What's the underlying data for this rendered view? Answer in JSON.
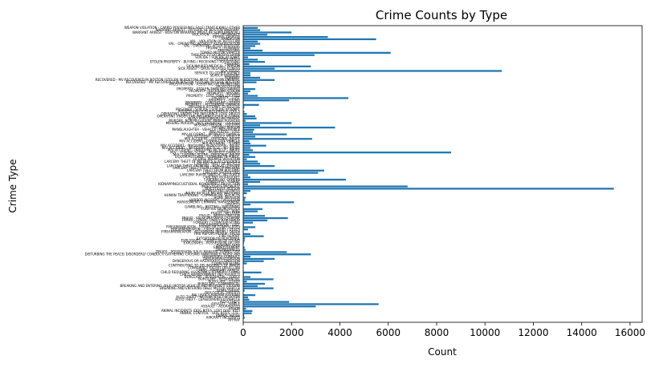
{
  "chart_data": {
    "type": "barh",
    "title": "Crime Counts by Type",
    "xlabel": "Count",
    "ylabel": "Crime Type",
    "color": "#1f77b4",
    "xlim": [
      0,
      16500
    ],
    "xticks": [
      0,
      2000,
      4000,
      6000,
      8000,
      10000,
      12000,
      14000,
      16000
    ],
    "categories": [
      "AFFRAY",
      "AIRCRAFT INCIDENTS",
      "ANIMAL ABUSE",
      "ANIMAL CONTROL - DOG BITES - ETC.",
      "ANIMAL INCIDENTS (DOG BITES, LOST DOG, ETC)",
      "ARSON",
      "ASSAULT - AGGRAVATED",
      "ASSAULT - SIMPLE",
      "AUTO THEFT",
      "AUTO THEFT - LEASED/RENTED VEHICLE",
      "AUTO THEFT - MOTORCYCLE / SCOOTER",
      "BALLISTICS EVIDENCE/FOUND",
      "BIOLOGICAL THREATS",
      "BOMB THREAT",
      "BREAKING AND ENTERING (B&E) MOTOR VEHICLE",
      "BREAKING AND ENTERING (B&E) MOTOR VEHICLE (NO PROPERTY STOLEN)",
      "BURGLARY - COMMERICAL",
      "BURGLARY - OTHER",
      "BURGLARY - RESIDENTIAL",
      "BURGLARY - RESIDENTIAL - FORCE",
      "CHILD ABANDONMENT (NO ASSAULT)",
      "CHILD REQUIRING ASSISTANCE (FOMERLY CHINS)",
      "CHINS - WARRANT ARREST",
      "CONSPIRACY EXCEPT DRUG LAW",
      "CONTRIBUTING TO DELINQUENCY OF MINOR",
      "COUNTERFEITING",
      "DANGEROUS OR HAZARDOUS CONDITION",
      "DEATH INVESTIGATION",
      "DISORDERLY CONDUCT",
      "DISTURBING THE PEACE/ DISORDERLY CONDUCT/ GATHERING CAUSING ANNOYANCE/ NOISY PAR",
      "DRUGS - POSSESSION/ SALE/ MANUFACTURING/ USE",
      "DRUNKENNESS",
      "EMBEZZLEMENT",
      "EVADING FARE",
      "EXPLOSIVES - POSSESSION OR USE",
      "EXPLOSIVES - TURNED IN OR FOUND",
      "EXTORTION OR BLACKMAIL",
      "FIRE REPORT",
      "FIRE REPORT/ALARM - FALSE",
      "FIREARM/WEAPON - ACCIDENTAL INJURY / DEATH",
      "FIREARM/WEAPON - CAUSE INJURY / DEATH",
      "FIREARM/WEAPON - FOUND OR CONFISCATED",
      "FIREARM/WEAPON - LOST",
      "FORGERY / COUNTERFEITING",
      "FRAUD - CREDIT CARD / ATM FRAUD",
      "FRAUD - FALSE PRETENSE / SCHEME",
      "FRAUD - IMPERSONATION",
      "FRAUD - WELFARE",
      "FRAUD - WIRE",
      "FUGITIVE FROM JUSTICE",
      "GAMBLING - BETTING / WAGERING",
      "GRAFFITI",
      "HARASSMENT/ CRIMINAL HARASSMENT",
      "HARBOR INCIDENT / VIOLATION",
      "HOME INVASION",
      "HUMAN TRAFFICKING - COMMERCIAL SEX ACTS",
      "INJURY BICYCLE NO M/V INVOLVED",
      "INTIMIDATING WITNESS",
      "INVESTIGATE PERSON",
      "INVESTIGATE PROPERTY",
      "KIDNAPPING/CUSTODIAL KIDNAPPING/ ABDUCTION",
      "LANDLORD - TENANT",
      "LARCENY ALL OTHERS",
      "LARCENY PICK-POCKET",
      "LARCENY PURSE SNATCH - NO FORCE",
      "LARCENY SHOPLIFTING",
      "LARCENY THEFT FROM BUILDING",
      "LARCENY THEFT FROM COIN-OP MACHINE",
      "LARCENY THEFT FROM MV - NON-ACCESSORY",
      "LARCENY THEFT OF BICYCLE",
      "LARCENY THEFT OF MV PARTS & ACCESSORIES",
      "LICENSE PREMISE VIOLATION",
      "LIQUOR/ALCOHOL - DRINKING IN PUBLIC",
      "M/V - LEAVING SCENE - PERSONAL INJURY",
      "M/V - LEAVING SCENE - PROPERTY DAMAGE",
      "M/V ACCIDENT - INVOLVING BICYCLE - INJURY",
      "M/V ACCIDENT - INVOLVING BICYCLE - NO INJURY",
      "M/V ACCIDENT - INVOLVING PEDESTRIAN - INJURY",
      "M/V ACCIDENT - OTHER",
      "M/V ACCIDENT - OTHER CITY VEHICLE",
      "M/V ACCIDENT - PERSONAL INJURY",
      "M/V ACCIDENT - POLICE VEHICLE",
      "M/V ACCIDENT - PROPERTY DAMAGE",
      "M/V PLATES - LOST",
      "MANSLAUGHTER - VEHICLE - NEGLIGENCE",
      "MISSING PERSON",
      "MISSING PERSON - LOCATED",
      "MISSING PERSON - NOT REPORTED - LOCATED",
      "MURDER, NON-NEGLIGENT MANSLAUGHTER",
      "NOISY PARTY/RADIO-NO ARREST",
      "OPERATING UNDER THE INFLUENCE (OUI) ALCOHOL",
      "OPERATING UNDER THE INFLUENCE (OUI) DRUGS",
      "POSSESSION OF BURGLARIOUS TOOLS",
      "PRISONER - SUICIDE / SUICIDE ATTEMPT",
      "PRISONER ATTEMPT TO RESCUE",
      "PROPERTY - ACCIDENTAL DAMAGE",
      "PROPERTY - CONCEALING LEASED",
      "PROPERTY - FOUND",
      "PROPERTY - LOST",
      "PROPERTY - LOST THEN LOCATED",
      "PROPERTY - MISSING",
      "PROPERTY - RECEIVING STOLEN",
      "PROPERTY - STOLEN THEN RECOVERED",
      "PROSTITUTION",
      "PROSTITUTION - ASSISTING OR PROMOTING",
      "RECOVERED - MV RECOVERED IN BOSTON (STOLEN OUTSIDE BOSTON)",
      "RECOVERED - MV RECOVERED IN BOSTON (STOLEN IN BOSTON) MUST BE SUPPLEMENTAL",
      "ROBBERY",
      "SEARCH WARRANT",
      "SERVICE TO OTHER AGENCY",
      "SICK ASSIST",
      "SICK ASSIST - DRUG RELATED ILLNESS",
      "SICK/INJURED/MEDICAL - PERSON",
      "STALKING",
      "STOLEN PROPERTY - BUYING / RECEIVING / POSSESSING",
      "SUDDEN DEATH",
      "SUICIDE / SUICIDE ATTEMPT",
      "THREATS TO DO BODILY HARM",
      "TOWED MOTOR VEHICLE",
      "TRESPASSING",
      "TRUANCY / RUNAWAY",
      "VAL - OPERATING AFTER REV/SUSP.",
      "VAL - OPERATING WITHOUT AUTHORIZATION",
      "VAL - VIOLATION OF AUTO LAW",
      "VANDALISM",
      "VERBAL DISPUTE",
      "VIOLATION - CITY ORDINANCE",
      "WARRANT ARREST - BOSTON WARRANT (MUST BE SUPPLEMENTAL)",
      "WARRANT ARREST - OUTSIDE OF BOSTON WARRANT",
      "WEAPON VIOLATION - CARRY/ POSSESSING/ SALE/ TRAFFICKING/ OTHER"
    ],
    "values": [
      10,
      60,
      40,
      350,
      380,
      120,
      3000,
      5600,
      1900,
      250,
      200,
      500,
      10,
      60,
      1250,
      600,
      900,
      150,
      1250,
      300,
      30,
      750,
      20,
      20,
      15,
      150,
      850,
      1300,
      300,
      2800,
      1800,
      100,
      60,
      20,
      30,
      60,
      80,
      850,
      300,
      20,
      200,
      500,
      30,
      400,
      1000,
      1850,
      900,
      60,
      600,
      800,
      10,
      300,
      2100,
      80,
      100,
      20,
      150,
      300,
      15330,
      6800,
      200,
      700,
      4250,
      300,
      200,
      3100,
      3350,
      60,
      1300,
      700,
      600,
      150,
      500,
      250,
      8600,
      400,
      300,
      950,
      300,
      250,
      2850,
      500,
      1800,
      400,
      450,
      3800,
      700,
      2000,
      100,
      550,
      500,
      150,
      50,
      10,
      50,
      650,
      20,
      1900,
      4350,
      600,
      200,
      300,
      500,
      30,
      20,
      550,
      1300,
      700,
      300,
      300,
      10700,
      1300,
      2800,
      250,
      900,
      600,
      200,
      2950,
      6100,
      800,
      300,
      500,
      700,
      600,
      5500,
      3500,
      1000,
      2000,
      700,
      600
    ]
  }
}
